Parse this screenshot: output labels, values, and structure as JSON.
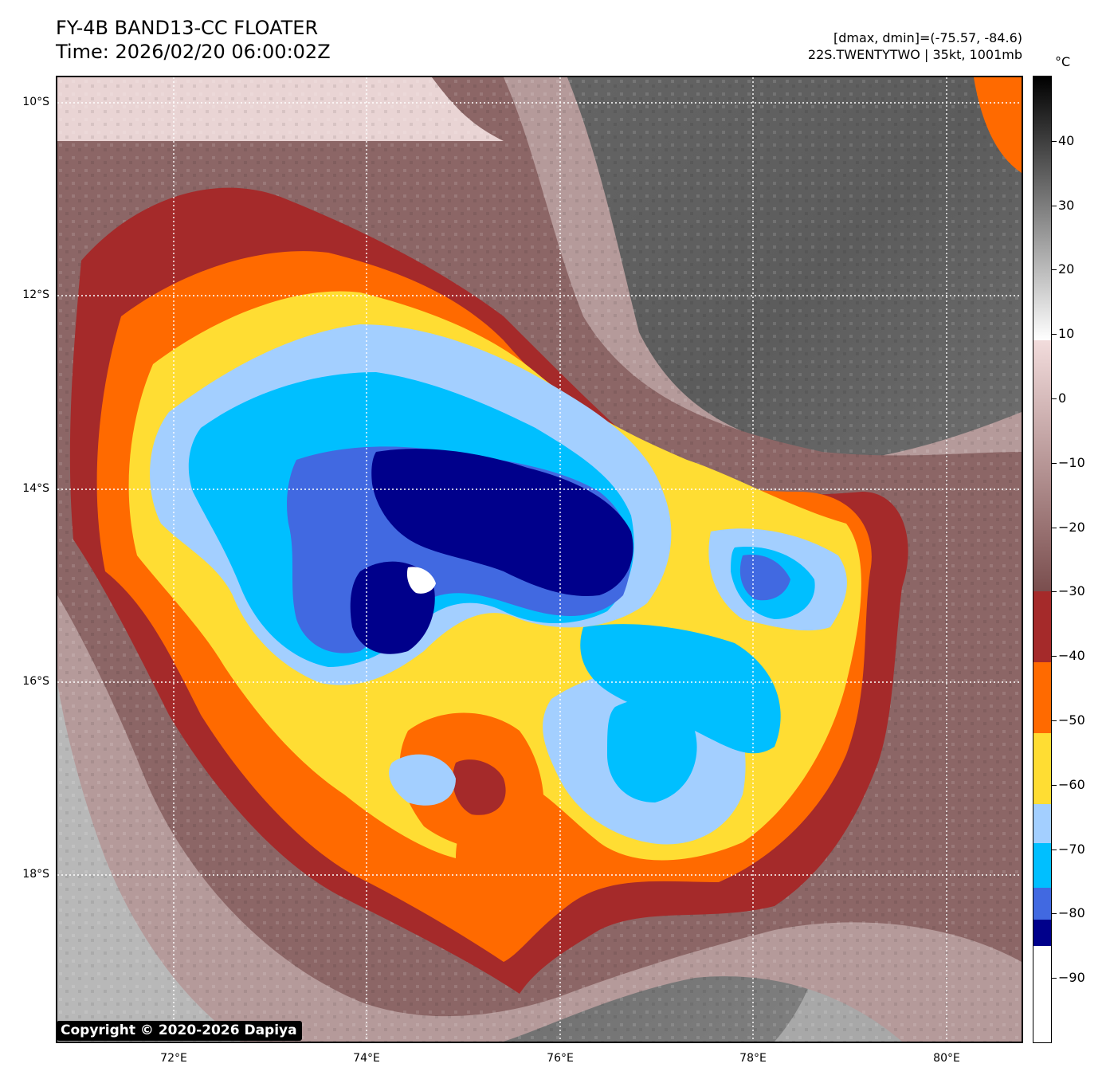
{
  "header": {
    "title_line1": "FY-4B BAND13-CC FLOATER",
    "title_line2": "Time: 2026/02/20 06:00:02Z",
    "info_line1": "[dmax, dmin]=(-75.57, -84.6)",
    "info_line2": "22S.TWENTYTWO | 35kt, 1001mb"
  },
  "map": {
    "lat_labels": [
      "10°S",
      "12°S",
      "14°S",
      "16°S",
      "18°S"
    ],
    "lon_labels": [
      "72°E",
      "74°E",
      "76°E",
      "78°E",
      "80°E"
    ],
    "copyright": "Copyright © 2020-2026 Dapiya",
    "storm_color_zones": [
      {
        "label": "-40 to -50",
        "color": "#ff6a00"
      },
      {
        "label": "-50 to -60",
        "color": "#ffdd33"
      },
      {
        "label": "-60 to -70",
        "color": "#a3cfff"
      },
      {
        "label": "-70 to -80",
        "color": "#00bfff"
      },
      {
        "label": "-80 to -85",
        "color": "#4169e1"
      },
      {
        "label": "< -85",
        "color": "#00008b"
      }
    ]
  },
  "colorbar": {
    "unit": "°C",
    "range": [
      -100,
      50
    ],
    "tick_labels": [
      "40",
      "30",
      "20",
      "10",
      "0",
      "−10",
      "−20",
      "−30",
      "−40",
      "−50",
      "−60",
      "−70",
      "−80",
      "−90"
    ],
    "tick_values": [
      40,
      30,
      20,
      10,
      0,
      -10,
      -20,
      -30,
      -40,
      -50,
      -60,
      -70,
      -80,
      -90
    ],
    "segments": [
      {
        "from": -100,
        "to": -85,
        "color": "#ffffff"
      },
      {
        "from": -85,
        "to": -81,
        "color": "#00008b"
      },
      {
        "from": -81,
        "to": -76,
        "color": "#4169e1"
      },
      {
        "from": -76,
        "to": -69,
        "color": "#00bfff"
      },
      {
        "from": -69,
        "to": -63,
        "color": "#a3cfff"
      },
      {
        "from": -63,
        "to": -52,
        "color": "#ffdd33"
      },
      {
        "from": -52,
        "to": -41,
        "color": "#ff6a00"
      },
      {
        "from": -41,
        "to": -30,
        "color": "#a52a2a"
      },
      {
        "from": -30,
        "to": 9,
        "color": "gradient:#f2dcdc:#7a4e4e"
      },
      {
        "from": 9,
        "to": 50,
        "color": "gradient:#000000:#ffffff"
      }
    ]
  }
}
